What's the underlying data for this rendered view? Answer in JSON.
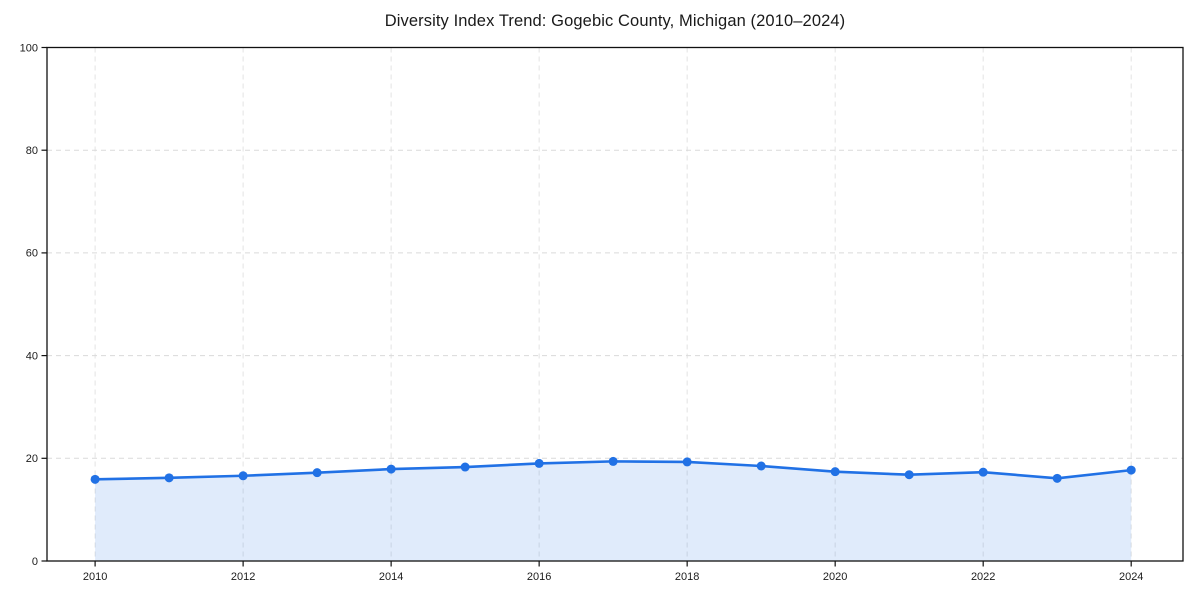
{
  "chart_data": {
    "type": "line",
    "title": "Diversity Index Trend: Gogebic County, Michigan (2010–2024)",
    "xlabel": "",
    "ylabel": "",
    "x": [
      2010,
      2011,
      2012,
      2013,
      2014,
      2015,
      2016,
      2017,
      2018,
      2019,
      2020,
      2021,
      2022,
      2023,
      2024
    ],
    "series": [
      {
        "name": "Diversity Index",
        "values": [
          15.9,
          16.2,
          16.6,
          17.2,
          17.9,
          18.3,
          19.0,
          19.4,
          19.3,
          18.5,
          17.4,
          16.8,
          17.3,
          16.1,
          17.7
        ]
      }
    ],
    "xticks": [
      2010,
      2012,
      2014,
      2016,
      2018,
      2020,
      2022,
      2024
    ],
    "yticks": [
      0,
      20,
      40,
      60,
      80,
      100
    ],
    "xlim": [
      2009.35,
      2024.7
    ],
    "ylim": [
      0,
      100
    ],
    "grid": true,
    "grid_style": "dashed",
    "legend_position": "none",
    "area_fill": true,
    "marker": "circle",
    "colors": {
      "line": "#2171e5",
      "marker": "#2171e5",
      "fill": "rgba(33, 113, 229, 0.14)",
      "grid_h": "#dadada",
      "grid_v": "#e3e3e3",
      "axis": "#111111",
      "tick_text": "#1c1c1c",
      "background": "#ffffff"
    }
  }
}
